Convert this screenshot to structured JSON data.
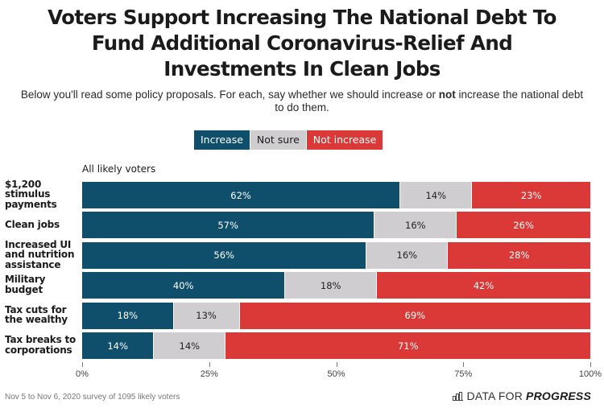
{
  "header": {
    "title_lines": [
      "Voters Support Increasing The National Debt To",
      "Fund Additional Coronavirus-Relief And",
      "Investments In Clean Jobs"
    ],
    "subtitle_pre": "Below you'll read some policy proposals. For each, say whether we should increase or ",
    "subtitle_bold": "not",
    "subtitle_post": " increase the national debt to do them."
  },
  "legend": {
    "increase": "Increase",
    "not_sure": "Not sure",
    "not_increase": "Not increase"
  },
  "colors": {
    "increase": "#0f4f6b",
    "not_sure": "#d0cdd0",
    "not_increase": "#da3937"
  },
  "chart_data": {
    "type": "bar",
    "orientation": "horizontal-stacked",
    "title": "Voters Support Increasing The National Debt To Fund Additional Coronavirus-Relief And Investments In Clean Jobs",
    "group": "All likely voters",
    "categories": [
      "$1,200 stimulus payments",
      "Clean jobs",
      "Increased UI and nutrition assistance",
      "Military budget",
      "Tax cuts for the wealthy",
      "Tax breaks to corporations"
    ],
    "category_lines": [
      [
        "$1,200",
        "stimulus",
        "payments"
      ],
      [
        "Clean jobs"
      ],
      [
        "Increased UI",
        "and nutrition",
        "assistance"
      ],
      [
        "Military",
        "budget"
      ],
      [
        "Tax cuts for",
        "the wealthy"
      ],
      [
        "Tax breaks to",
        "corporations"
      ]
    ],
    "series": [
      {
        "name": "Increase",
        "values": [
          62,
          57,
          56,
          40,
          18,
          14
        ]
      },
      {
        "name": "Not sure",
        "values": [
          14,
          16,
          16,
          18,
          13,
          14
        ]
      },
      {
        "name": "Not increase",
        "values": [
          23,
          26,
          28,
          42,
          69,
          71
        ]
      }
    ],
    "xlim": [
      0,
      100
    ],
    "xticks": [
      "0%",
      "25%",
      "50%",
      "75%",
      "100%"
    ],
    "xtick_values": [
      0,
      25,
      50,
      75,
      100
    ],
    "legend_position": "top-center",
    "grid": false
  },
  "footer": {
    "note": "Nov 5 to Nov 6, 2020 survey of 1095 likely voters",
    "brand_light": "DATA FOR",
    "brand_bold": "PROGRESS"
  }
}
